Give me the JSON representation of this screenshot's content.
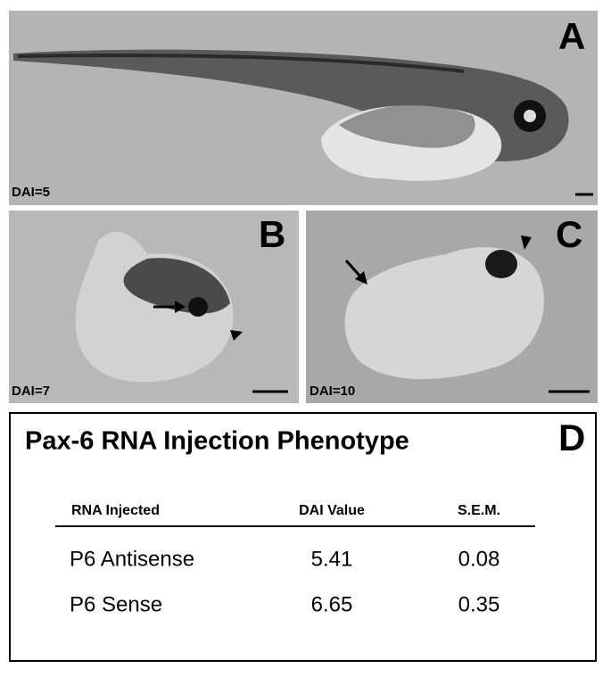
{
  "panels": [
    {
      "label": "A",
      "stage": "DAI=5"
    },
    {
      "label": "B",
      "stage": "DAI=7"
    },
    {
      "label": "C",
      "stage": "DAI=10"
    }
  ],
  "table_panel": {
    "label": "D",
    "title": "Pax-6 RNA Injection Phenotype",
    "columns": [
      "RNA Injected",
      "DAI Value",
      "S.E.M."
    ],
    "rows": [
      [
        "P6 Antisense",
        "5.41",
        "0.08"
      ],
      [
        "P6 Sense",
        "6.65",
        "0.35"
      ]
    ]
  }
}
